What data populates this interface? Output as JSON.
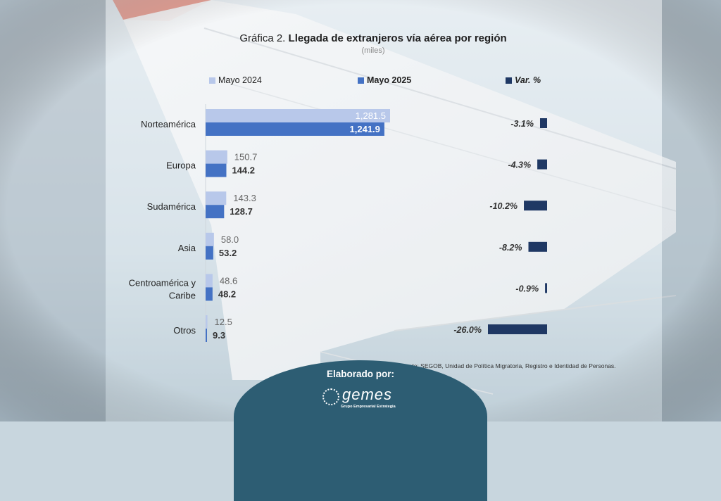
{
  "title_prefix": "Gráfica 2.",
  "title_main": "Llegada de extranjeros vía aérea por región",
  "subtitle": "(miles)",
  "legend": [
    {
      "label": "Mayo 2024",
      "color": "#b8c8ea",
      "bold": false,
      "italic": false
    },
    {
      "label": "Mayo 2025",
      "color": "#4472c4",
      "bold": true,
      "italic": false
    },
    {
      "label": "Var. %",
      "color": "#1f3864",
      "bold": true,
      "italic": true
    }
  ],
  "chart_data": {
    "type": "bar",
    "categories": [
      "Norteamérica",
      "Europa",
      "Sudamérica",
      "Asia",
      "Centroamérica y Caribe",
      "Otros"
    ],
    "series": [
      {
        "name": "Mayo 2024",
        "values": [
          1281.5,
          150.7,
          143.3,
          58.0,
          48.6,
          12.5
        ],
        "labels": [
          "1,281.5",
          "150.7",
          "143.3",
          "58.0",
          "48.6",
          "12.5"
        ],
        "color": "#b8c8ea"
      },
      {
        "name": "Mayo 2025",
        "values": [
          1241.9,
          144.2,
          128.7,
          53.2,
          48.2,
          9.3
        ],
        "labels": [
          "1,241.9",
          "144.2",
          "128.7",
          "53.2",
          "48.2",
          "9.3"
        ],
        "color": "#4472c4"
      },
      {
        "name": "Var. %",
        "values": [
          -3.1,
          -4.3,
          -10.2,
          -8.2,
          -0.9,
          -26.0
        ],
        "labels": [
          "-3.1%",
          "-4.3%",
          "-10.2%",
          "-8.2%",
          "-0.9%",
          "-26.0%"
        ],
        "color": "#1f3864"
      }
    ],
    "title": "Llegada de extranjeros vía aérea por región",
    "subtitle": "(miles)",
    "xlim_main": [
      0,
      1281.5
    ],
    "xlim_var": [
      -26.0,
      0
    ],
    "legend_position": "top",
    "grid": false
  },
  "footer": "Fuente: SEGOB, Unidad de Política Migratoria, Registro e Identidad de Personas.",
  "badge": {
    "title": "Elaborado por:",
    "logo_word": "gemes",
    "logo_sub": "Grupo Empresarial Estrategia"
  },
  "colors": {
    "prev": "#b8c8ea",
    "curr": "#4472c4",
    "var": "#1f3864",
    "badge": "#2d5d73"
  }
}
